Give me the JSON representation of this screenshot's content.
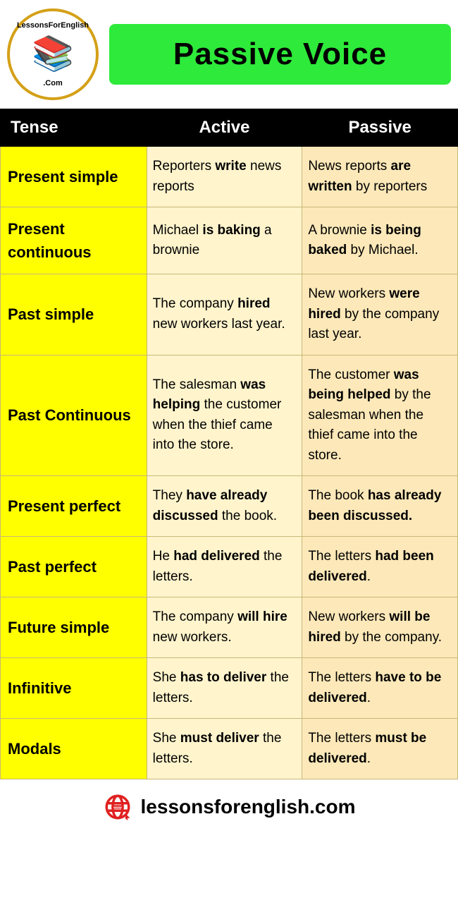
{
  "logo": {
    "top_text": "LessonsForEnglish",
    "bottom_text": ".Com",
    "icon_emoji": "📚"
  },
  "title": "Passive Voice",
  "columns": {
    "tense": "Tense",
    "active": "Active",
    "passive": "Passive"
  },
  "rows": [
    {
      "tense": "Present simple",
      "active": "Reporters <b>write</b> news reports",
      "passive": "News reports <b>are written</b> by reporters"
    },
    {
      "tense": "Present continuous",
      "active": "Michael <b>is baking</b> a brownie",
      "passive": "A brownie <b>is being baked</b> by  Michael."
    },
    {
      "tense": "Past simple",
      "active": "The company <b>hired</b> new workers last year.",
      "passive": "New workers <b>were hired</b> by the company last year."
    },
    {
      "tense": "Past Continuous",
      "active": "The salesman <b>was helping</b> the customer when the thief came into the store.",
      "passive": "The customer <b>was being helped</b> by the salesman when the thief came into the store."
    },
    {
      "tense": "Present perfect",
      "active": "They <b>have already discussed</b> the book.",
      "passive": "The book <b>has already been discussed.</b>"
    },
    {
      "tense": "Past perfect",
      "active": "He <b>had delivered</b> the letters.",
      "passive": "The letters <b>had been delivered</b>."
    },
    {
      "tense": "Future simple",
      "active": "The company <b>will hire</b> new workers.",
      "passive": "New workers <b>will be hired</b> by the company."
    },
    {
      "tense": "Infinitive",
      "active": "She <b>has to deliver</b> the letters.",
      "passive": "The letters <b>have to be delivered</b>."
    },
    {
      "tense": "Modals",
      "active": "She <b>must deliver</b> the letters.",
      "passive": "The letters <b>must be delivered</b>."
    }
  ],
  "footer": {
    "url": "lessonsforenglish.com"
  },
  "colors": {
    "title_bg": "#2eea3a",
    "header_bg": "#000000",
    "header_text": "#ffffff",
    "tense_bg": "#ffff00",
    "active_bg": "#fff4cc",
    "passive_bg": "#fce8b8",
    "border": "#c9b878",
    "logo_border": "#d4a017",
    "footer_icon": "#e02020"
  },
  "typography": {
    "title_fontsize": 44,
    "header_fontsize": 24,
    "tense_fontsize": 22,
    "cell_fontsize": 19,
    "footer_fontsize": 28
  }
}
